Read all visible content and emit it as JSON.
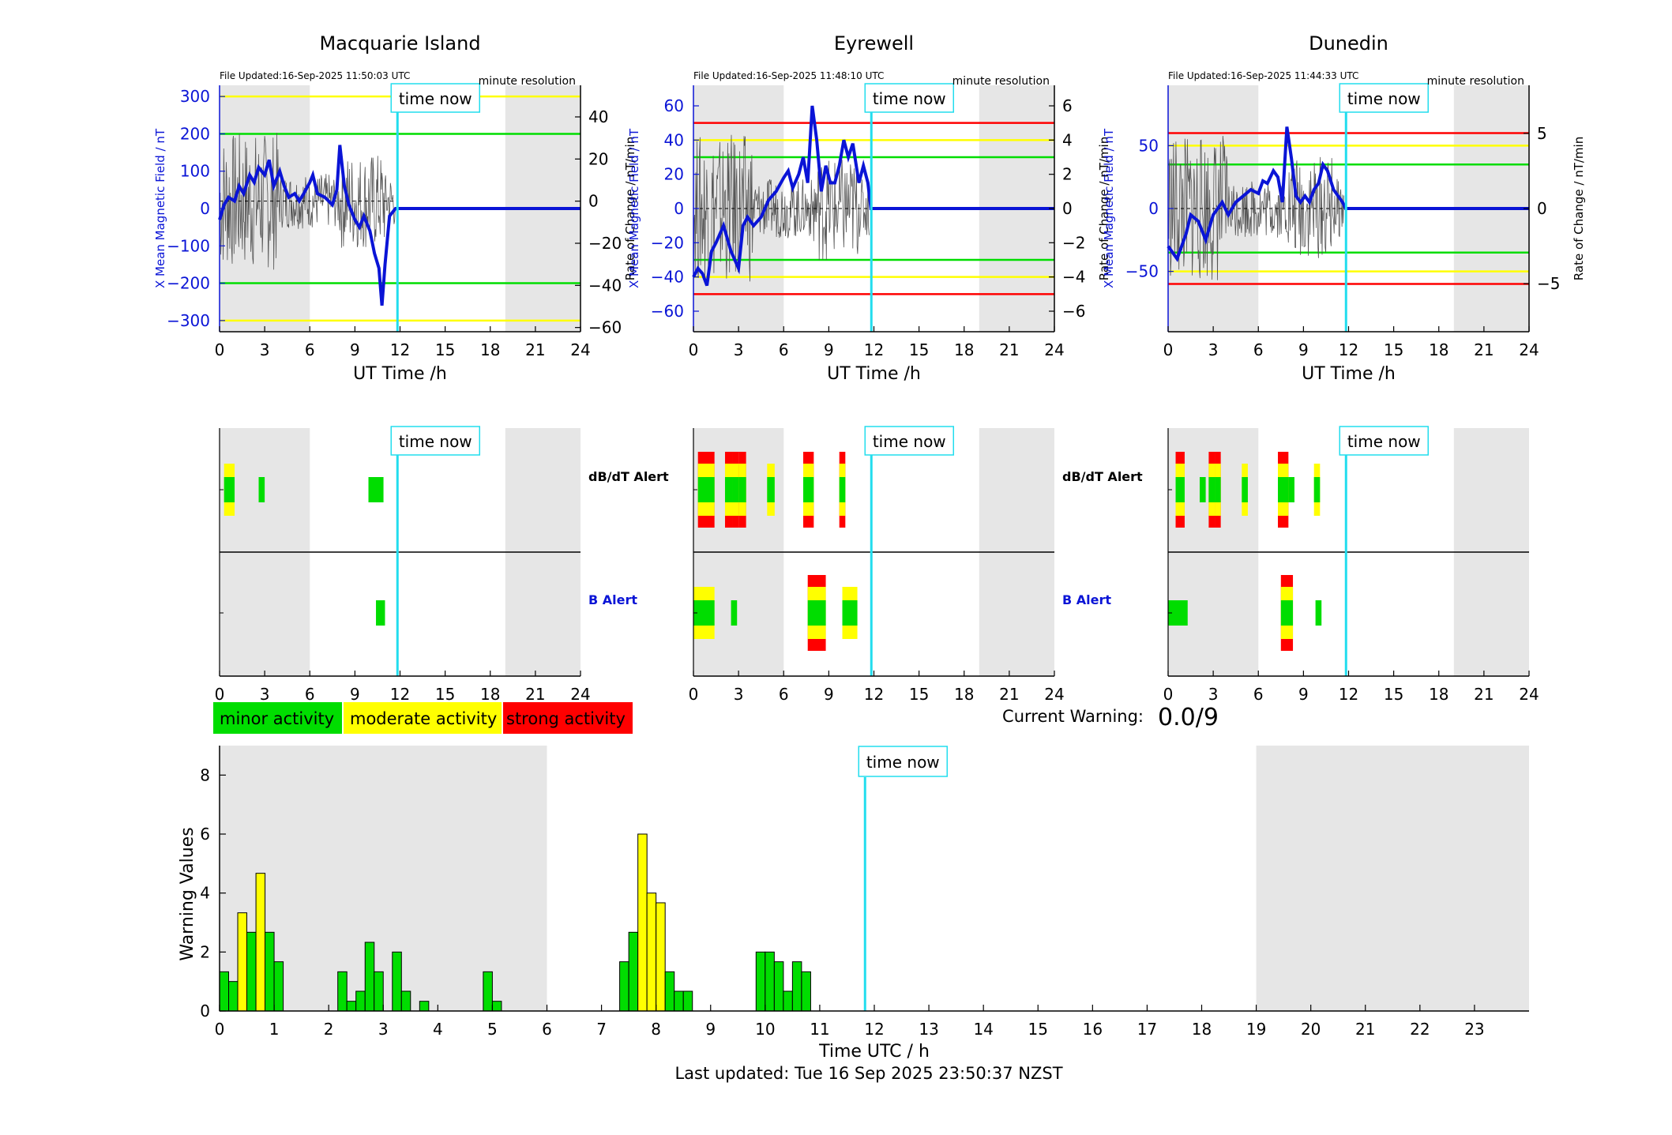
{
  "stations": [
    {
      "title": "Macquarie Island",
      "file_updated": "File Updated:16-Sep-2025 11:50:03 UTC",
      "resolution": "minute resolution",
      "time_now_label": "time now",
      "xlabel": "UT Time /h",
      "ylabel_left": "X Mean Magnetic Field / nT",
      "ylabel_right": "Rate of Change / nT/min",
      "ylim": [
        -330,
        330
      ],
      "yticks": [
        300,
        200,
        100,
        0,
        -100,
        -200,
        -300
      ],
      "y2ticks": [
        40,
        20,
        0,
        -20,
        -40,
        -60
      ],
      "y2lim": [
        -62,
        55
      ],
      "thresholds": [
        {
          "value": 300,
          "color": "#ffff00"
        },
        {
          "value": 200,
          "color": "#00dd00"
        },
        {
          "value": -200,
          "color": "#00dd00"
        },
        {
          "value": -300,
          "color": "#ffff00"
        }
      ],
      "field_series": [
        [
          0,
          -30
        ],
        [
          0.3,
          10
        ],
        [
          0.6,
          30
        ],
        [
          1,
          20
        ],
        [
          1.3,
          60
        ],
        [
          1.6,
          40
        ],
        [
          2,
          90
        ],
        [
          2.3,
          70
        ],
        [
          2.6,
          110
        ],
        [
          3,
          90
        ],
        [
          3.3,
          130
        ],
        [
          3.6,
          60
        ],
        [
          4,
          100
        ],
        [
          4.3,
          60
        ],
        [
          4.6,
          30
        ],
        [
          5,
          40
        ],
        [
          5.3,
          20
        ],
        [
          5.6,
          40
        ],
        [
          6,
          70
        ],
        [
          6.2,
          90
        ],
        [
          6.5,
          40
        ],
        [
          7,
          30
        ],
        [
          7.5,
          10
        ],
        [
          7.8,
          50
        ],
        [
          8,
          170
        ],
        [
          8.3,
          60
        ],
        [
          8.6,
          10
        ],
        [
          9,
          -30
        ],
        [
          9.3,
          -50
        ],
        [
          9.6,
          -20
        ],
        [
          10,
          -60
        ],
        [
          10.3,
          -120
        ],
        [
          10.6,
          -160
        ],
        [
          10.8,
          -260
        ],
        [
          11,
          -150
        ],
        [
          11.3,
          -20
        ],
        [
          11.5,
          -10
        ],
        [
          11.7,
          0
        ],
        [
          24,
          0
        ]
      ],
      "dbdt_alerts": [
        {
          "start": 0.3,
          "end": 1.0,
          "level": "moderate"
        },
        {
          "start": 2.6,
          "end": 3.0,
          "level": "minor"
        },
        {
          "start": 9.9,
          "end": 10.9,
          "level": "minor"
        }
      ],
      "b_alerts": [
        {
          "start": 10.4,
          "end": 11.0,
          "level": "minor"
        }
      ]
    },
    {
      "title": "Eyrewell",
      "file_updated": "File Updated:16-Sep-2025 11:48:10 UTC",
      "resolution": "minute resolution",
      "time_now_label": "time now",
      "xlabel": "UT Time /h",
      "ylabel_left": "X Mean Magnetic Field / nT",
      "ylabel_right": "Rate of Change / nT/min",
      "ylim": [
        -72,
        72
      ],
      "yticks": [
        60,
        40,
        20,
        0,
        -20,
        -40,
        -60
      ],
      "y2ticks": [
        6,
        4,
        2,
        0,
        -2,
        -4,
        -6
      ],
      "y2lim": [
        -7.2,
        7.2
      ],
      "thresholds": [
        {
          "value": 50,
          "color": "#ff0000"
        },
        {
          "value": 40,
          "color": "#ffff00"
        },
        {
          "value": 30,
          "color": "#00dd00"
        },
        {
          "value": -30,
          "color": "#00dd00"
        },
        {
          "value": -40,
          "color": "#ffff00"
        },
        {
          "value": -50,
          "color": "#ff0000"
        }
      ],
      "field_series": [
        [
          0,
          -40
        ],
        [
          0.3,
          -35
        ],
        [
          0.6,
          -38
        ],
        [
          0.9,
          -45
        ],
        [
          1.2,
          -25
        ],
        [
          1.5,
          -20
        ],
        [
          2,
          -10
        ],
        [
          2.5,
          -25
        ],
        [
          3,
          -35
        ],
        [
          3.3,
          -10
        ],
        [
          3.6,
          -5
        ],
        [
          4,
          -10
        ],
        [
          4.5,
          -5
        ],
        [
          5,
          5
        ],
        [
          5.5,
          10
        ],
        [
          6,
          18
        ],
        [
          6.3,
          22
        ],
        [
          6.6,
          12
        ],
        [
          7,
          20
        ],
        [
          7.3,
          30
        ],
        [
          7.6,
          15
        ],
        [
          7.9,
          60
        ],
        [
          8.2,
          40
        ],
        [
          8.5,
          10
        ],
        [
          8.8,
          25
        ],
        [
          9.1,
          15
        ],
        [
          9.4,
          15
        ],
        [
          9.7,
          25
        ],
        [
          10,
          40
        ],
        [
          10.3,
          30
        ],
        [
          10.6,
          38
        ],
        [
          11,
          15
        ],
        [
          11.3,
          25
        ],
        [
          11.6,
          15
        ],
        [
          11.8,
          0
        ],
        [
          24,
          0
        ]
      ],
      "dbdt_alerts": [
        {
          "start": 0.3,
          "end": 1.4,
          "level": "strong"
        },
        {
          "start": 2.1,
          "end": 2.6,
          "level": "strong"
        },
        {
          "start": 2.6,
          "end": 3.0,
          "level": "strong"
        },
        {
          "start": 3.0,
          "end": 3.5,
          "level": "strong"
        },
        {
          "start": 4.9,
          "end": 5.4,
          "level": "moderate"
        },
        {
          "start": 7.3,
          "end": 8.0,
          "level": "strong"
        },
        {
          "start": 9.7,
          "end": 10.1,
          "level": "strong"
        }
      ],
      "b_alerts": [
        {
          "start": 0.0,
          "end": 1.4,
          "level": "moderate"
        },
        {
          "start": 2.5,
          "end": 2.9,
          "level": "minor"
        },
        {
          "start": 7.6,
          "end": 8.8,
          "level": "strong"
        },
        {
          "start": 9.9,
          "end": 10.9,
          "level": "moderate"
        }
      ]
    },
    {
      "title": "Dunedin",
      "file_updated": "File Updated:16-Sep-2025 11:44:33 UTC",
      "resolution": "minute resolution",
      "time_now_label": "time now",
      "xlabel": "UT Time /h",
      "ylabel_left": "X Mean Magnetic Field / nT",
      "ylabel_right": "Rate of Change / nT/min",
      "ylim": [
        -98,
        98
      ],
      "yticks": [
        50,
        0,
        -50
      ],
      "y2ticks": [
        5,
        0,
        -5
      ],
      "y2lim": [
        -8.2,
        8.2
      ],
      "thresholds": [
        {
          "value": 60,
          "color": "#ff0000"
        },
        {
          "value": 50,
          "color": "#ffff00"
        },
        {
          "value": 35,
          "color": "#00dd00"
        },
        {
          "value": -35,
          "color": "#00dd00"
        },
        {
          "value": -50,
          "color": "#ffff00"
        },
        {
          "value": -60,
          "color": "#ff0000"
        }
      ],
      "field_series": [
        [
          0,
          -30
        ],
        [
          0.3,
          -35
        ],
        [
          0.6,
          -40
        ],
        [
          0.9,
          -30
        ],
        [
          1.2,
          -20
        ],
        [
          1.5,
          -5
        ],
        [
          2,
          -10
        ],
        [
          2.5,
          -25
        ],
        [
          3,
          -5
        ],
        [
          3.3,
          0
        ],
        [
          3.6,
          5
        ],
        [
          4,
          -5
        ],
        [
          4.5,
          5
        ],
        [
          5,
          10
        ],
        [
          5.5,
          15
        ],
        [
          6,
          12
        ],
        [
          6.3,
          22
        ],
        [
          6.6,
          20
        ],
        [
          7,
          30
        ],
        [
          7.3,
          25
        ],
        [
          7.6,
          5
        ],
        [
          7.9,
          65
        ],
        [
          8.2,
          40
        ],
        [
          8.5,
          10
        ],
        [
          8.8,
          5
        ],
        [
          9.1,
          10
        ],
        [
          9.4,
          5
        ],
        [
          9.7,
          15
        ],
        [
          10,
          20
        ],
        [
          10.3,
          35
        ],
        [
          10.6,
          30
        ],
        [
          11,
          15
        ],
        [
          11.3,
          10
        ],
        [
          11.6,
          5
        ],
        [
          11.8,
          0
        ],
        [
          24,
          0
        ]
      ],
      "dbdt_alerts": [
        {
          "start": 0.5,
          "end": 1.1,
          "level": "strong"
        },
        {
          "start": 2.1,
          "end": 2.5,
          "level": "minor"
        },
        {
          "start": 2.7,
          "end": 3.1,
          "level": "strong"
        },
        {
          "start": 3.1,
          "end": 3.5,
          "level": "strong"
        },
        {
          "start": 4.9,
          "end": 5.3,
          "level": "moderate"
        },
        {
          "start": 7.3,
          "end": 8.0,
          "level": "strong"
        },
        {
          "start": 8.0,
          "end": 8.4,
          "level": "minor"
        },
        {
          "start": 9.7,
          "end": 10.1,
          "level": "moderate"
        }
      ],
      "b_alerts": [
        {
          "start": 0.0,
          "end": 1.3,
          "level": "minor"
        },
        {
          "start": 7.5,
          "end": 8.3,
          "level": "strong"
        },
        {
          "start": 9.8,
          "end": 10.2,
          "level": "minor"
        }
      ]
    }
  ],
  "alert_labels": {
    "dbdt": "dB/dT Alert",
    "b": "B Alert"
  },
  "legend": [
    {
      "label": "minor activity",
      "color": "#00dd00"
    },
    {
      "label": "moderate activity",
      "color": "#ffff00"
    },
    {
      "label": "strong activity",
      "color": "#ff0000"
    }
  ],
  "current_warning": {
    "label": "Current Warning:",
    "value": "0.0/9"
  },
  "time_now_hour": 11.83,
  "shaded_regions": [
    [
      0,
      6
    ],
    [
      19,
      24
    ]
  ],
  "level_colors": {
    "minor": "#00dd00",
    "moderate": "#ffff00",
    "strong": "#ff0000"
  },
  "chart_data": {
    "type": "bar",
    "xlabel": "Time UTC / h",
    "ylabel": "Warning Values",
    "xlim": [
      0,
      24
    ],
    "ylim": [
      0,
      9
    ],
    "xticks": [
      0,
      1,
      2,
      3,
      4,
      5,
      6,
      7,
      8,
      9,
      10,
      11,
      12,
      13,
      14,
      15,
      16,
      17,
      18,
      19,
      20,
      21,
      22,
      23
    ],
    "yticks": [
      0,
      2,
      4,
      6,
      8
    ],
    "shaded_regions": [
      [
        0,
        6
      ],
      [
        19,
        24
      ]
    ],
    "time_now": 11.83,
    "time_now_label": "time now",
    "bar_width_h": 0.1667,
    "bars": [
      {
        "x": 0.0,
        "value": 1.33,
        "level": "minor"
      },
      {
        "x": 0.167,
        "value": 1.0,
        "level": "minor"
      },
      {
        "x": 0.333,
        "value": 3.33,
        "level": "moderate"
      },
      {
        "x": 0.5,
        "value": 2.67,
        "level": "minor"
      },
      {
        "x": 0.667,
        "value": 4.67,
        "level": "moderate"
      },
      {
        "x": 0.833,
        "value": 2.67,
        "level": "minor"
      },
      {
        "x": 1.0,
        "value": 1.67,
        "level": "minor"
      },
      {
        "x": 2.167,
        "value": 1.33,
        "level": "minor"
      },
      {
        "x": 2.333,
        "value": 0.33,
        "level": "minor"
      },
      {
        "x": 2.5,
        "value": 0.67,
        "level": "minor"
      },
      {
        "x": 2.667,
        "value": 2.33,
        "level": "minor"
      },
      {
        "x": 2.833,
        "value": 1.33,
        "level": "minor"
      },
      {
        "x": 3.167,
        "value": 2.0,
        "level": "minor"
      },
      {
        "x": 3.333,
        "value": 0.67,
        "level": "minor"
      },
      {
        "x": 3.667,
        "value": 0.33,
        "level": "minor"
      },
      {
        "x": 4.833,
        "value": 1.33,
        "level": "minor"
      },
      {
        "x": 5.0,
        "value": 0.33,
        "level": "minor"
      },
      {
        "x": 7.333,
        "value": 1.67,
        "level": "minor"
      },
      {
        "x": 7.5,
        "value": 2.67,
        "level": "minor"
      },
      {
        "x": 7.667,
        "value": 6.0,
        "level": "moderate"
      },
      {
        "x": 7.833,
        "value": 4.0,
        "level": "moderate"
      },
      {
        "x": 8.0,
        "value": 3.67,
        "level": "moderate"
      },
      {
        "x": 8.167,
        "value": 1.33,
        "level": "minor"
      },
      {
        "x": 8.333,
        "value": 0.67,
        "level": "minor"
      },
      {
        "x": 8.5,
        "value": 0.67,
        "level": "minor"
      },
      {
        "x": 9.833,
        "value": 2.0,
        "level": "minor"
      },
      {
        "x": 10.0,
        "value": 2.0,
        "level": "minor"
      },
      {
        "x": 10.167,
        "value": 1.67,
        "level": "minor"
      },
      {
        "x": 10.333,
        "value": 0.67,
        "level": "minor"
      },
      {
        "x": 10.5,
        "value": 1.67,
        "level": "minor"
      },
      {
        "x": 10.667,
        "value": 1.33,
        "level": "minor"
      }
    ]
  },
  "footer": "Last updated: Tue 16 Sep 2025 23:50:37 NZST"
}
